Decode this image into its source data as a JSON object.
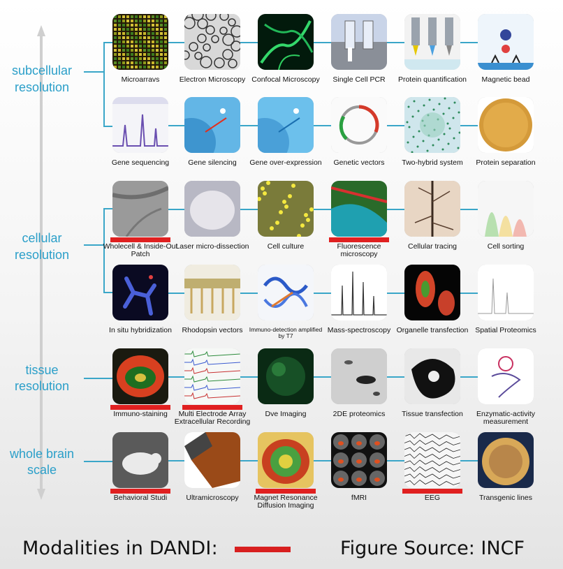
{
  "scale_labels": [
    {
      "key": "subcellular",
      "text": "subcellular resolution"
    },
    {
      "key": "cellular",
      "text": "cellular resolution"
    },
    {
      "key": "tissue",
      "text": "tissue resolution"
    },
    {
      "key": "whole_brain",
      "text": "whole brain scale"
    }
  ],
  "rows": [
    {
      "modalities": [
        {
          "label": "Microarravs",
          "icon": "microarray-icon",
          "dandi": false
        },
        {
          "label": "Electron Microscopy",
          "icon": "electron-microscopy-icon",
          "dandi": false
        },
        {
          "label": "Confocal Microscopy",
          "icon": "confocal-icon",
          "dandi": false
        },
        {
          "label": "Single Cell PCR",
          "icon": "pcr-icon",
          "dandi": false
        },
        {
          "label": "Protein quantification",
          "icon": "protein-quant-icon",
          "dandi": false
        },
        {
          "label": "Magnetic bead",
          "icon": "magnetic-bead-icon",
          "dandi": false
        }
      ]
    },
    {
      "modalities": [
        {
          "label": "Gene sequencing",
          "icon": "sequencing-icon",
          "dandi": false
        },
        {
          "label": "Gene silencing",
          "icon": "silencing-icon",
          "dandi": false
        },
        {
          "label": "Gene over-expression",
          "icon": "overexpression-icon",
          "dandi": false
        },
        {
          "label": "Genetic vectors",
          "icon": "plasmid-icon",
          "dandi": false
        },
        {
          "label": "Two-hybrid system",
          "icon": "network-icon",
          "dandi": false
        },
        {
          "label": "Protein separation",
          "icon": "gel-plate-icon",
          "dandi": false
        }
      ]
    },
    {
      "modalities": [
        {
          "label": "Wholecell & Inside-Out Patch",
          "icon": "patch-clamp-icon",
          "dandi": true
        },
        {
          "label": "Laser micro-dissection",
          "icon": "microdissection-icon",
          "dandi": false
        },
        {
          "label": "Cell culture",
          "icon": "cell-culture-icon",
          "dandi": false
        },
        {
          "label": "Fluorescence microscopy",
          "icon": "fluorescence-icon",
          "dandi": true
        },
        {
          "label": "Cellular tracing",
          "icon": "tracing-icon",
          "dandi": false
        },
        {
          "label": "Cell sorting",
          "icon": "sorting-icon",
          "dandi": false
        }
      ]
    },
    {
      "modalities": [
        {
          "label": "In situ hybridization",
          "icon": "in-situ-icon",
          "dandi": false
        },
        {
          "label": "Rhodopsin vectors",
          "icon": "rhodopsin-icon",
          "dandi": false
        },
        {
          "label": "Immuno-detection amplified by T7",
          "icon": "protein-structure-icon",
          "dandi": false,
          "small": true
        },
        {
          "label": "Mass-spectroscopy",
          "icon": "mass-spec-icon",
          "dandi": false
        },
        {
          "label": "Organelle transfection",
          "icon": "organelle-icon",
          "dandi": false
        },
        {
          "label": "Spatial Proteomics",
          "icon": "proteomics-icon",
          "dandi": false
        }
      ]
    },
    {
      "modalities": [
        {
          "label": "Immuno-staining",
          "icon": "immunostaining-icon",
          "dandi": true
        },
        {
          "label": "Multi Electrode Array Extracellular Recording",
          "icon": "electrode-array-icon",
          "dandi": true
        },
        {
          "label": "Dve Imaging",
          "icon": "dye-imaging-icon",
          "dandi": false
        },
        {
          "label": "2DE proteomics",
          "icon": "2de-gel-icon",
          "dandi": false
        },
        {
          "label": "Tissue transfection",
          "icon": "tissue-transfection-icon",
          "dandi": false
        },
        {
          "label": "Enzymatic-activity measurement",
          "icon": "enzyme-icon",
          "dandi": false
        }
      ]
    },
    {
      "modalities": [
        {
          "label": "Behavioral Studi",
          "icon": "rat-icon",
          "dandi": true
        },
        {
          "label": "Ultramicroscopy",
          "icon": "ultramicroscopy-icon",
          "dandi": false
        },
        {
          "label": "Magnet Resonance Diffusion Imaging",
          "icon": "diffusion-mri-icon",
          "dandi": true
        },
        {
          "label": "fMRI",
          "icon": "fmri-icon",
          "dandi": false
        },
        {
          "label": "EEG",
          "icon": "eeg-icon",
          "dandi": true
        },
        {
          "label": "Transgenic lines",
          "icon": "mouse-icon",
          "dandi": false
        }
      ]
    }
  ],
  "footer": {
    "legend_text": "Modalities in DANDI:",
    "source_text": "Figure Source: INCF"
  },
  "colors": {
    "connector": "#3aa6c8",
    "dandi_marker": "#e02020",
    "scale_text": "#2b9fc9"
  }
}
